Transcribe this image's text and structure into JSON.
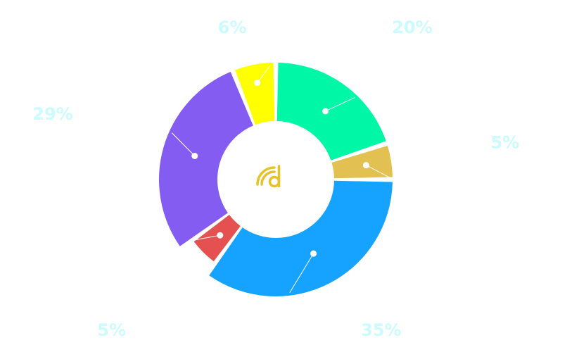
{
  "chart_data": {
    "type": "pie",
    "variant": "donut",
    "title": "",
    "legend": "none",
    "slices": [
      {
        "label": "20%",
        "value": 20,
        "color": "#00f7a5"
      },
      {
        "label": "5%",
        "value": 5,
        "color": "#e2c152"
      },
      {
        "label": "35%",
        "value": 35,
        "color": "#16a3ff"
      },
      {
        "label": "5%",
        "value": 5,
        "color": "#e55050"
      },
      {
        "label": "29%",
        "value": 29,
        "color": "#845cf2"
      },
      {
        "label": "6%",
        "value": 6,
        "color": "#ffff00"
      }
    ]
  },
  "center_logo": {
    "icon": "d-signal-logo-icon",
    "color": "#e6c327"
  }
}
